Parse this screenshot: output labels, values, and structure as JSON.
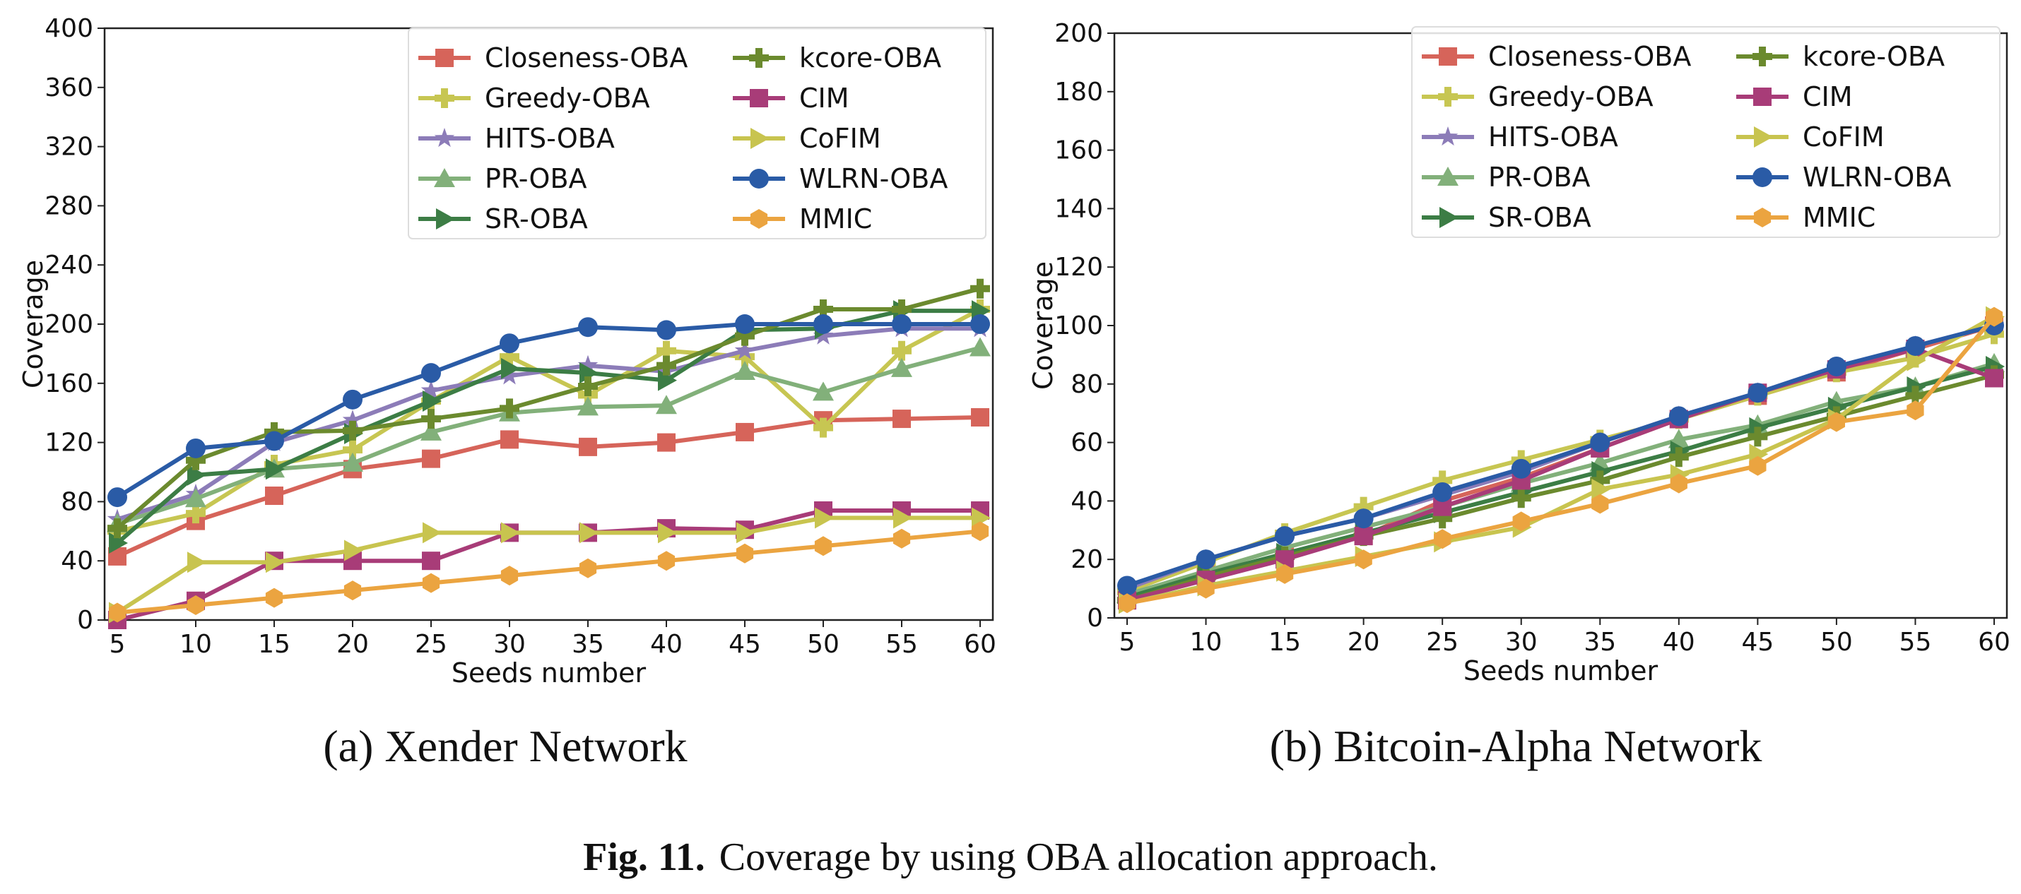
{
  "caption": {
    "label": "Fig. 11.",
    "text": "Coverage by using OBA allocation approach."
  },
  "colors": {
    "Closeness-OBA": "#d6645a",
    "Greedy-OBA": "#c7c652",
    "HITS-OBA": "#8c7cb8",
    "PR-OBA": "#82b07a",
    "SR-OBA": "#3c7d45",
    "kcore-OBA": "#6b8a2e",
    "CIM": "#a83c78",
    "CoFIM": "#c8c44f",
    "WLRN-OBA": "#2a5ba6",
    "MMIC": "#eba440"
  },
  "markers": {
    "Closeness-OBA": "square",
    "Greedy-OBA": "plus",
    "HITS-OBA": "star",
    "PR-OBA": "triangle-up",
    "SR-OBA": "triangle-right",
    "kcore-OBA": "plus",
    "CIM": "square",
    "CoFIM": "triangle-right",
    "WLRN-OBA": "circle",
    "MMIC": "hexagon"
  },
  "chart_data": [
    {
      "type": "line",
      "subcaption": "(a) Xender Network",
      "xlabel": "Seeds number",
      "ylabel": "Coverage",
      "x": [
        5,
        10,
        15,
        20,
        25,
        30,
        35,
        40,
        45,
        50,
        55,
        60
      ],
      "xticks": [
        "5",
        "10",
        "15",
        "20",
        "25",
        "30",
        "35",
        "40",
        "45",
        "50",
        "55",
        "60"
      ],
      "ylim": [
        0,
        400
      ],
      "yticks": [
        "0",
        "40",
        "80",
        "120",
        "160",
        "200",
        "240",
        "280",
        "320",
        "360",
        "400"
      ],
      "legend": "top-right",
      "series": [
        {
          "name": "Closeness-OBA",
          "values": [
            43,
            67,
            84,
            102,
            109,
            122,
            117,
            120,
            127,
            135,
            136,
            137
          ]
        },
        {
          "name": "Greedy-OBA",
          "values": [
            60,
            72,
            105,
            115,
            148,
            178,
            152,
            182,
            178,
            130,
            182,
            210
          ]
        },
        {
          "name": "HITS-OBA",
          "values": [
            68,
            85,
            120,
            135,
            155,
            165,
            172,
            168,
            182,
            192,
            197,
            197
          ]
        },
        {
          "name": "PR-OBA",
          "values": [
            65,
            82,
            102,
            106,
            127,
            140,
            144,
            145,
            168,
            154,
            170,
            184
          ]
        },
        {
          "name": "SR-OBA",
          "values": [
            52,
            98,
            102,
            126,
            148,
            170,
            167,
            162,
            196,
            197,
            209,
            209
          ]
        },
        {
          "name": "kcore-OBA",
          "values": [
            62,
            108,
            127,
            128,
            136,
            143,
            158,
            172,
            192,
            210,
            210,
            224
          ]
        },
        {
          "name": "CIM",
          "values": [
            0,
            13,
            40,
            40,
            40,
            59,
            59,
            62,
            61,
            74,
            74,
            74
          ]
        },
        {
          "name": "CoFIM",
          "values": [
            5,
            39,
            39,
            47,
            59,
            59,
            59,
            59,
            59,
            69,
            69,
            69
          ]
        },
        {
          "name": "WLRN-OBA",
          "values": [
            83,
            116,
            121,
            149,
            167,
            187,
            198,
            196,
            200,
            200,
            200,
            200
          ]
        },
        {
          "name": "MMIC",
          "values": [
            5,
            10,
            15,
            20,
            25,
            30,
            35,
            40,
            45,
            50,
            55,
            60
          ]
        }
      ]
    },
    {
      "type": "line",
      "subcaption": "(b) Bitcoin-Alpha Network",
      "xlabel": "Seeds number",
      "ylabel": "Coverage",
      "x": [
        5,
        10,
        15,
        20,
        25,
        30,
        35,
        40,
        45,
        50,
        55,
        60
      ],
      "xticks": [
        "5",
        "10",
        "15",
        "20",
        "25",
        "30",
        "35",
        "40",
        "45",
        "50",
        "55",
        "60"
      ],
      "ylim": [
        0,
        200
      ],
      "yticks": [
        "0",
        "20",
        "40",
        "60",
        "80",
        "100",
        "120",
        "140",
        "160",
        "180",
        "200"
      ],
      "legend": "top-right",
      "series": [
        {
          "name": "Closeness-OBA",
          "values": [
            7,
            15,
            21,
            28,
            40,
            48,
            58,
            68,
            76,
            84,
            92,
            100
          ]
        },
        {
          "name": "Greedy-OBA",
          "values": [
            9,
            19,
            29,
            38,
            47,
            54,
            61,
            68,
            76,
            84,
            89,
            97
          ]
        },
        {
          "name": "HITS-OBA",
          "values": [
            10,
            20,
            28,
            34,
            42,
            50,
            60,
            69,
            77,
            85,
            93,
            100
          ]
        },
        {
          "name": "PR-OBA",
          "values": [
            8,
            16,
            24,
            31,
            38,
            46,
            53,
            61,
            66,
            74,
            79,
            87
          ]
        },
        {
          "name": "SR-OBA",
          "values": [
            7,
            15,
            22,
            29,
            36,
            43,
            50,
            57,
            65,
            72,
            79,
            86
          ]
        },
        {
          "name": "kcore-OBA",
          "values": [
            6,
            14,
            21,
            28,
            34,
            41,
            47,
            55,
            62,
            69,
            76,
            83
          ]
        },
        {
          "name": "CIM",
          "values": [
            6,
            13,
            20,
            28,
            38,
            47,
            58,
            68,
            77,
            85,
            92,
            82
          ]
        },
        {
          "name": "CoFIM",
          "values": [
            5,
            11,
            16,
            21,
            26,
            31,
            44,
            49,
            56,
            68,
            88,
            103
          ]
        },
        {
          "name": "WLRN-OBA",
          "values": [
            11,
            20,
            28,
            34,
            43,
            51,
            60,
            69,
            77,
            86,
            93,
            100
          ]
        },
        {
          "name": "MMIC",
          "values": [
            5,
            10,
            15,
            20,
            27,
            33,
            39,
            46,
            52,
            67,
            71,
            103
          ]
        }
      ]
    }
  ]
}
